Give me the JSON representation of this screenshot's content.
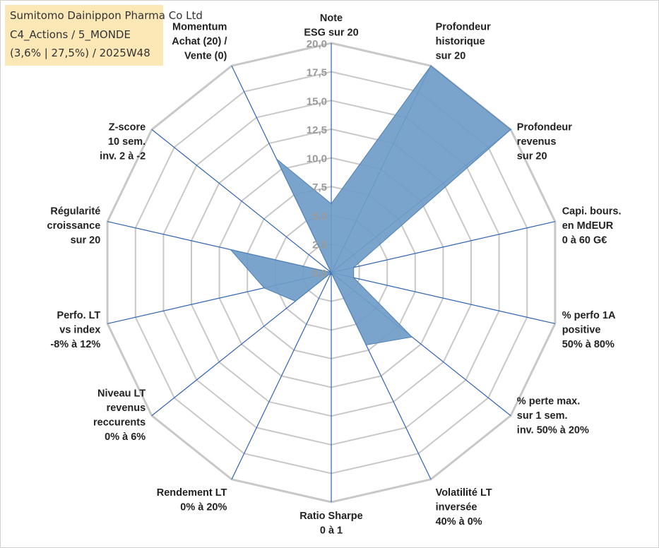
{
  "title_box": {
    "line1": "Sumitomo Dainippon Pharma Co Ltd",
    "line2": "C4_Actions / 5_MONDE",
    "line3": "(3,6% | 27,5%) / 2025W48"
  },
  "colors": {
    "fill": "#6f9cc8",
    "stroke": "#4f7fb2",
    "spoke": "#2f63b0",
    "grid": "#c8c8c8",
    "title_bg": "#fce8b7"
  },
  "chart_data": {
    "type": "radar",
    "rmax": 20,
    "ticks": [
      "0,0",
      "2,5",
      "5,0",
      "7,5",
      "10,0",
      "12,5",
      "15,0",
      "17,5",
      "20,0"
    ],
    "axes": [
      {
        "label": [
          "Note",
          "ESG sur 20"
        ],
        "value": 6
      },
      {
        "label": [
          "Profondeur",
          "historique",
          "sur 20"
        ],
        "value": 20
      },
      {
        "label": [
          "Profondeur",
          "revenus",
          "sur 20"
        ],
        "value": 20
      },
      {
        "label": [
          "Capi. bours.",
          "en MdEUR",
          "0 à 60 G€"
        ],
        "value": 2
      },
      {
        "label": [
          "% perfo 1A",
          "positive",
          "50% à 80%"
        ],
        "value": 2
      },
      {
        "label": [
          "% perte max.",
          "sur 1 sem.",
          "inv. 50% à 20%"
        ],
        "value": 9
      },
      {
        "label": [
          "Volatilité LT",
          "inversée",
          "40% à 0%"
        ],
        "value": 7
      },
      {
        "label": [
          "Ratio Sharpe",
          "0 à 1"
        ],
        "value": 0
      },
      {
        "label": [
          "Rendement LT",
          "0% à 20%"
        ],
        "value": 0
      },
      {
        "label": [
          "Niveau LT",
          "revenus",
          "reccurents",
          "0% à 6%"
        ],
        "value": 4
      },
      {
        "label": [
          "Perfo. LT",
          "vs index",
          "-8% à 12%"
        ],
        "value": 6
      },
      {
        "label": [
          "Régularité",
          "croissance",
          "sur 20"
        ],
        "value": 9
      },
      {
        "label": [
          "Z-score",
          "10 sem.",
          "inv. 2 à -2"
        ],
        "value": 0
      },
      {
        "label": [
          "Momentum",
          "Achat (20) /",
          "Vente (0)"
        ],
        "value": 11
      }
    ]
  }
}
